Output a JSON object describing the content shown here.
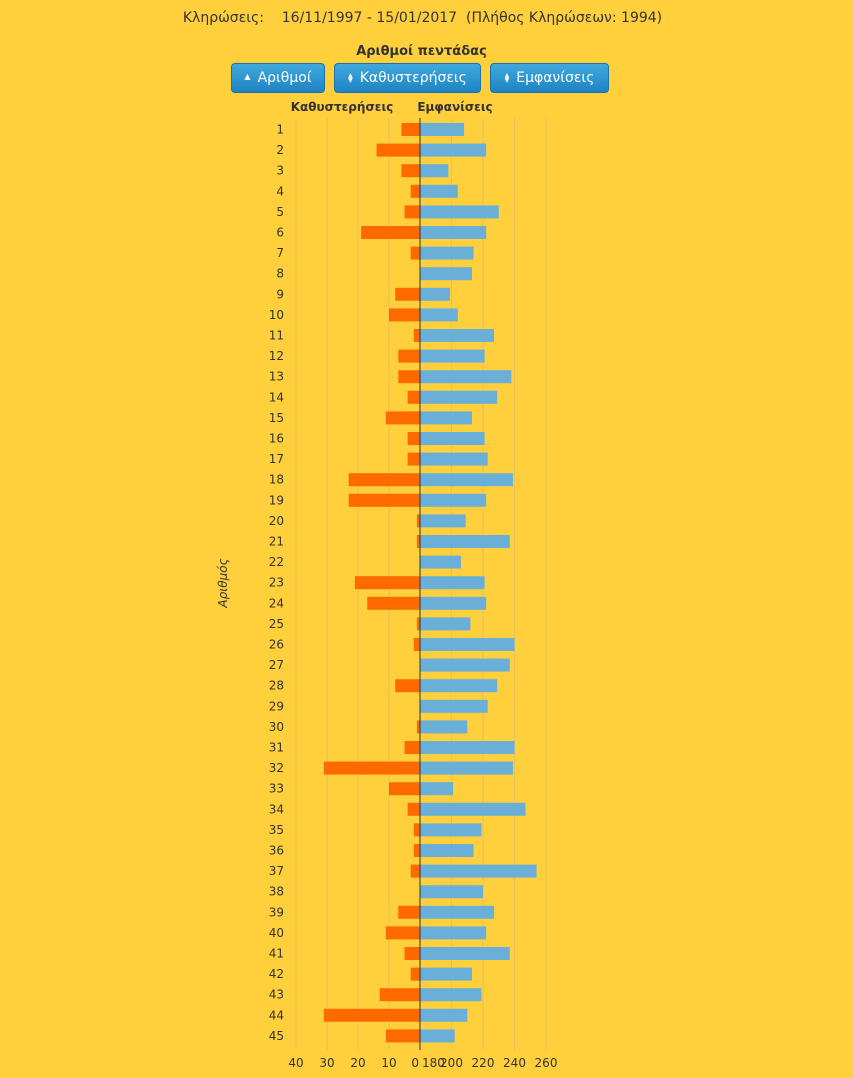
{
  "header": {
    "label": "Κληρώσεις:",
    "range": "16/11/1997 - 15/01/2017",
    "count": "(Πλήθος Κληρώσεων: 1994)"
  },
  "toolbar": {
    "numbers_label": "Αριθμοί",
    "numbers_icon": "triangle-up-icon",
    "delays_label": "Καθυστερήσεις",
    "delays_icon": "sort-arrows-icon",
    "appearances_label": "Εμφανίσεις",
    "appearances_icon": "sort-arrows-icon"
  },
  "chart_data": {
    "type": "bar",
    "orientation": "horizontal",
    "title": "Αριθμοί πεντάδας",
    "ylabel": "Αριθμός",
    "left_header": "Καθυστερήσεις",
    "right_header": "Εμφανίσεις",
    "categories": [
      "1",
      "2",
      "3",
      "4",
      "5",
      "6",
      "7",
      "8",
      "9",
      "10",
      "11",
      "12",
      "13",
      "14",
      "15",
      "16",
      "17",
      "18",
      "19",
      "20",
      "21",
      "22",
      "23",
      "24",
      "25",
      "26",
      "27",
      "28",
      "29",
      "30",
      "31",
      "32",
      "33",
      "34",
      "35",
      "36",
      "37",
      "38",
      "39",
      "40",
      "41",
      "42",
      "43",
      "44",
      "45"
    ],
    "series": [
      {
        "name": "Καθυστερήσεις",
        "color": "#ff6a00",
        "side": "left",
        "xlim": [
          0,
          40
        ],
        "ticks": [
          40,
          30,
          20,
          10,
          0
        ],
        "values": [
          6,
          14,
          6,
          3,
          5,
          19,
          3,
          0,
          8,
          10,
          2,
          7,
          7,
          4,
          11,
          4,
          4,
          23,
          23,
          1,
          1,
          0,
          21,
          17,
          1,
          2,
          0,
          8,
          0,
          1,
          5,
          31,
          10,
          4,
          2,
          2,
          3,
          0,
          7,
          11,
          5,
          3,
          13,
          31,
          11
        ]
      },
      {
        "name": "Εμφανίσεις",
        "color": "#6aafd8",
        "side": "right",
        "xlim": [
          180,
          260
        ],
        "ticks": [
          180,
          200,
          220,
          240,
          260
        ],
        "values": [
          208,
          222,
          198,
          204,
          230,
          222,
          214,
          213,
          199,
          204,
          227,
          221,
          238,
          229,
          213,
          221,
          223,
          239,
          222,
          209,
          237,
          206,
          221,
          222,
          212,
          240,
          237,
          229,
          223,
          210,
          240,
          239,
          201,
          247,
          219,
          214,
          254,
          220,
          227,
          222,
          237,
          213,
          219,
          210,
          202
        ]
      }
    ],
    "tick_labels_bottom": [
      "40",
      "30",
      "20",
      "10",
      "0",
      "180",
      "200",
      "220",
      "240",
      "260"
    ],
    "grid": true
  }
}
